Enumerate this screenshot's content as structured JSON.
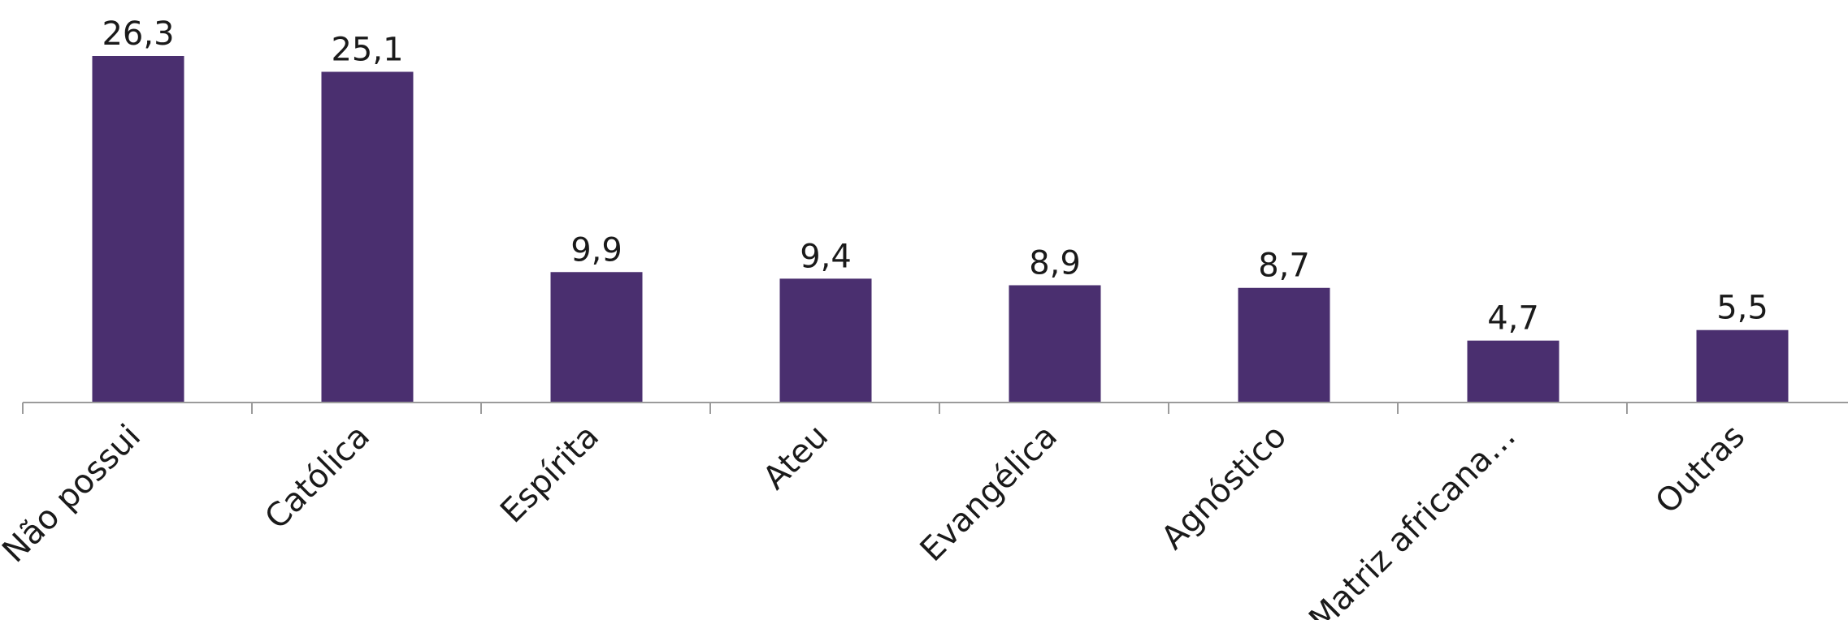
{
  "chart_data": {
    "type": "bar",
    "title": "",
    "xlabel": "",
    "ylabel": "",
    "categories": [
      "Não possui",
      "Católica",
      "Espírita",
      "Ateu",
      "Evangélica",
      "Agnóstico",
      "Matriz africana…",
      "Outras"
    ],
    "values": [
      26.3,
      25.1,
      9.9,
      9.4,
      8.9,
      8.7,
      4.7,
      5.5
    ],
    "value_labels": [
      "26,3",
      "25,1",
      "9,9",
      "9,4",
      "8,9",
      "8,7",
      "4,7",
      "5,5"
    ],
    "ylim": [
      0,
      30
    ],
    "grid": false,
    "legend": "none",
    "colors": {
      "bar": "#4a2f6f",
      "axis": "#9b9b9b",
      "text": "#1a1a1a"
    }
  }
}
